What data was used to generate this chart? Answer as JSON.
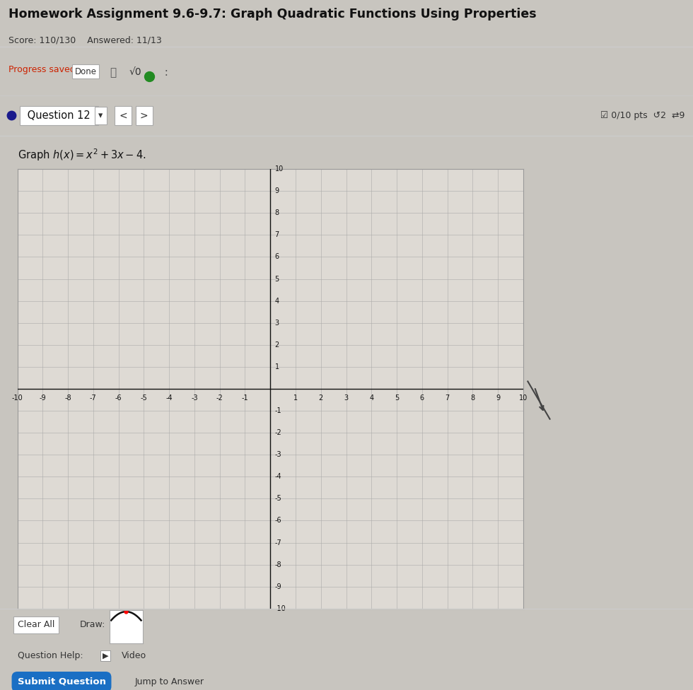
{
  "title": "Homework Assignment 9.6-9.7: Graph Quadratic Functions Using Properties",
  "score_text": "Score: 110/130    Answered: 11/13",
  "progress_text": "Progress saved",
  "done_text": "Done",
  "sqrt_text": "√0",
  "question_text": "Question 12",
  "pts_text": "☑ 0/10 pts  ↺2  ⇄9",
  "graph_label": "Graph $h(x) = x^2 + 3x - 4$.",
  "xlim": [
    -10,
    10
  ],
  "ylim": [
    -10,
    10
  ],
  "bg_color": "#c8c5bf",
  "plot_bg": "#dedad4",
  "header_bg": "#f5f3f0",
  "progress_color": "#cc2200",
  "question_dot_color": "#1a1a8c",
  "submit_btn_color": "#1a6fc4",
  "axis_color": "#111111",
  "tick_color": "#111111",
  "grid_color": "#aaaaaa",
  "border_color": "#999999"
}
